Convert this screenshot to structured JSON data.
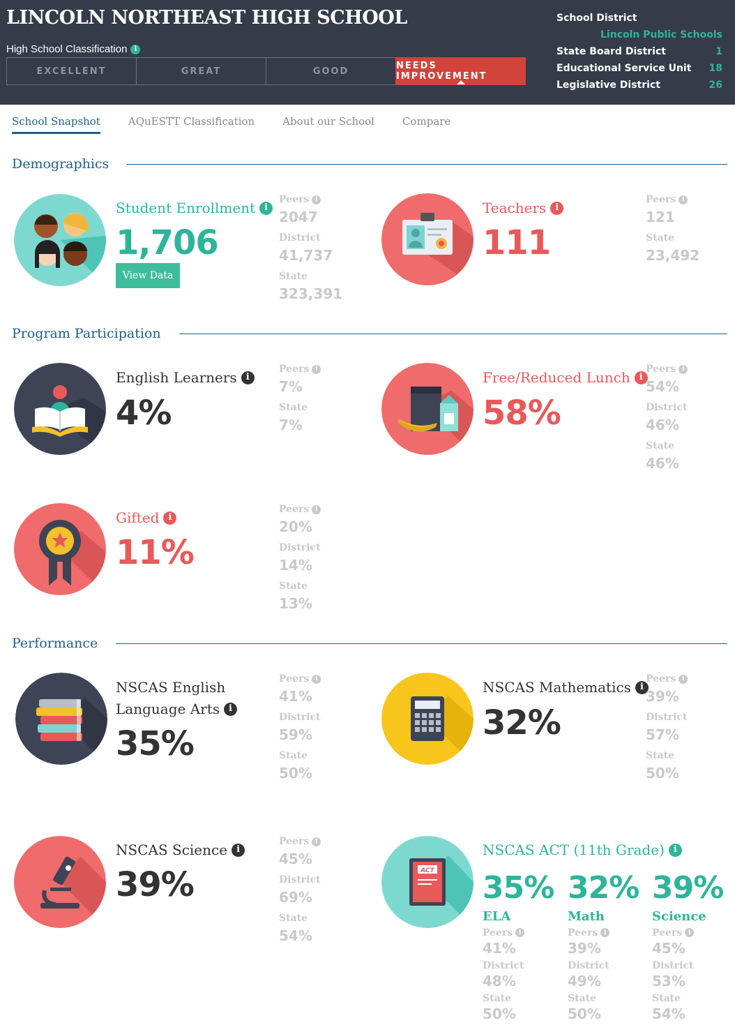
{
  "header": {
    "school_name": "LINCOLN NORTHEAST HIGH SCHOOL",
    "classification_label": "High School Classification",
    "classifications": [
      "EXCELLENT",
      "GREAT",
      "GOOD",
      "NEEDS IMPROVEMENT"
    ],
    "active_classification": "NEEDS IMPROVEMENT",
    "district": {
      "school_district_label": "School District",
      "school_district_value": "Lincoln Public Schools",
      "state_board_label": "State Board District",
      "state_board_value": "1",
      "esu_label": "Educational Service Unit",
      "esu_value": "18",
      "legislative_label": "Legislative District",
      "legislative_value": "26"
    }
  },
  "tabs": [
    "School Snapshot",
    "AQuESTT Classification",
    "About our School",
    "Compare"
  ],
  "sections": {
    "demographics": "Demographics",
    "program": "Program Participation",
    "performance": "Performance"
  },
  "labels": {
    "peers": "Peers",
    "district": "District",
    "state": "State"
  },
  "enrollment": {
    "title": "Student Enrollment",
    "value": "1,706",
    "button": "View Data",
    "peers": "2047",
    "district": "41,737",
    "state": "323,391"
  },
  "teachers": {
    "title": "Teachers",
    "value": "111",
    "peers": "121",
    "state": "23,492"
  },
  "english_learners": {
    "title": "English Learners",
    "value": "4%",
    "peers": "7%",
    "state": "7%"
  },
  "lunch": {
    "title": "Free/Reduced Lunch",
    "value": "58%",
    "peers": "54%",
    "district": "46%",
    "state": "46%"
  },
  "gifted": {
    "title": "Gifted",
    "value": "11%",
    "peers": "20%",
    "district": "14%",
    "state": "13%"
  },
  "ela": {
    "title_line1": "NSCAS English",
    "title_line2": "Language Arts",
    "value": "35%",
    "peers": "41%",
    "district": "59%",
    "state": "50%"
  },
  "math": {
    "title": "NSCAS Mathematics",
    "value": "32%",
    "peers": "39%",
    "district": "57%",
    "state": "50%"
  },
  "science": {
    "title": "NSCAS Science",
    "value": "39%",
    "peers": "45%",
    "district": "69%",
    "state": "54%"
  },
  "act": {
    "title": "NSCAS ACT (11th Grade)",
    "icon_text": "ACT",
    "cols": [
      {
        "value": "35%",
        "label": "ELA",
        "peers": "41%",
        "district": "48%",
        "state": "50%"
      },
      {
        "value": "32%",
        "label": "Math",
        "peers": "39%",
        "district": "49%",
        "state": "50%"
      },
      {
        "value": "39%",
        "label": "Science",
        "peers": "45%",
        "district": "53%",
        "state": "54%"
      }
    ]
  },
  "colors": {
    "header_bg": "#363b49",
    "teal": "#2db59b",
    "red": "#e8595a",
    "navy": "#1f5f8e",
    "needs_improvement": "#d2433c",
    "muted": "#c9c9c9"
  }
}
